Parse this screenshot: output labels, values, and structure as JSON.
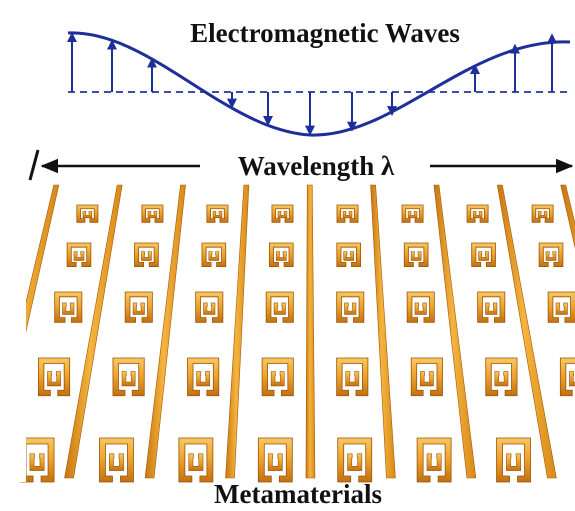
{
  "title": "Electromagnetic Waves",
  "wavelength_label": "Wavelength λ",
  "bottom_label": "Metamaterials",
  "colors": {
    "wave": "#1f2f9a",
    "arrow": "#1f2f9a",
    "baseline": "#3b4bb0",
    "metal_light": "#f6c356",
    "metal_mid": "#e99a1f",
    "metal_dark": "#b8650a",
    "dimension_line": "#111111"
  },
  "metamaterial_rows": 5,
  "metamaterial_columns": 8
}
